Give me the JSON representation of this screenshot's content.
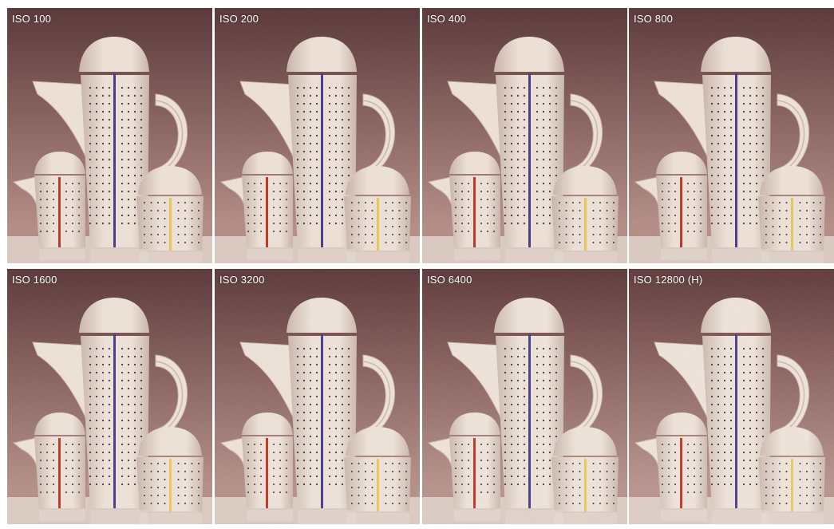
{
  "panels": [
    {
      "label": "ISO 100",
      "noise": 0.0
    },
    {
      "label": "ISO 200",
      "noise": 0.04
    },
    {
      "label": "ISO 400",
      "noise": 0.1
    },
    {
      "label": "ISO 800",
      "noise": 0.16
    },
    {
      "label": "ISO 1600",
      "noise": 0.26
    },
    {
      "label": "ISO 3200",
      "noise": 0.38
    },
    {
      "label": "ISO 6400",
      "noise": 0.55
    },
    {
      "label": "ISO 12800 (H)",
      "noise": 0.75
    }
  ],
  "colors": {
    "background_top": "#5c3a3b",
    "background_bottom": "#b38d86",
    "porcelain": "#ece0d6",
    "porcelain_shadow": "#c9b5aa",
    "stripe_blue": "#4b3f8a",
    "stripe_red": "#c0392b",
    "stripe_yellow": "#e3c85a",
    "table": "#d9c9c0"
  }
}
